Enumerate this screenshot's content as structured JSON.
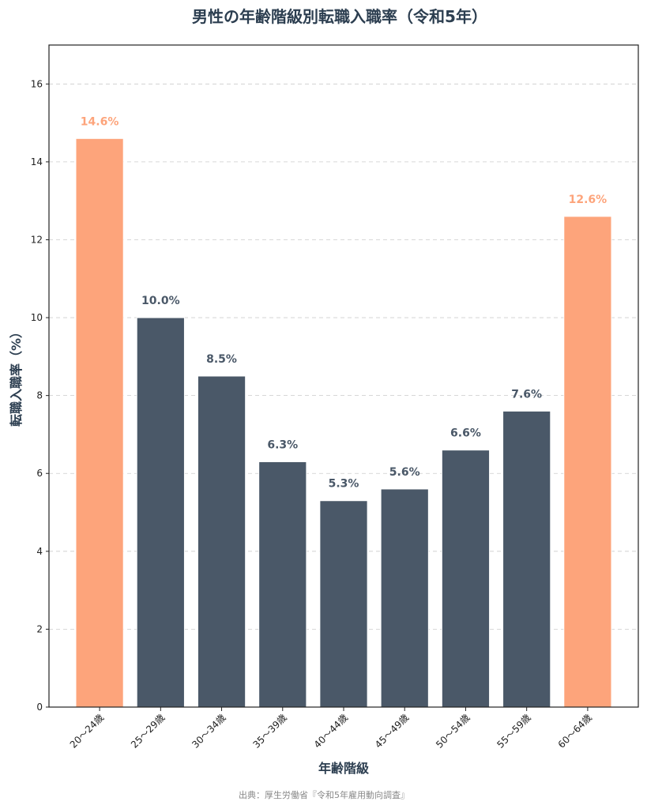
{
  "chart_data": {
    "type": "bar",
    "title": "男性の年齢階級別転職入職率（令和5年）",
    "xlabel": "年齢階級",
    "ylabel": "転職入職率（%）",
    "categories": [
      "20～24歳",
      "25～29歳",
      "30～34歳",
      "35～39歳",
      "40～44歳",
      "45～49歳",
      "50～54歳",
      "55～59歳",
      "60～64歳"
    ],
    "values": [
      14.6,
      10.0,
      8.5,
      6.3,
      5.3,
      5.6,
      6.6,
      7.6,
      12.6
    ],
    "data_labels": [
      "14.6%",
      "10.0%",
      "8.5%",
      "6.3%",
      "5.3%",
      "5.6%",
      "6.6%",
      "7.6%",
      "12.6%"
    ],
    "highlight": [
      true,
      false,
      false,
      false,
      false,
      false,
      false,
      false,
      true
    ],
    "ylim": [
      0,
      17
    ],
    "yticks": [
      0,
      2,
      4,
      6,
      8,
      10,
      12,
      14,
      16
    ],
    "grid": "y-dashed",
    "colors": {
      "highlight": "#fda47b",
      "normal": "#4a5868",
      "title": "#2c3e50"
    },
    "source": "出典：厚生労働省『令和5年雇用動向調査』"
  }
}
